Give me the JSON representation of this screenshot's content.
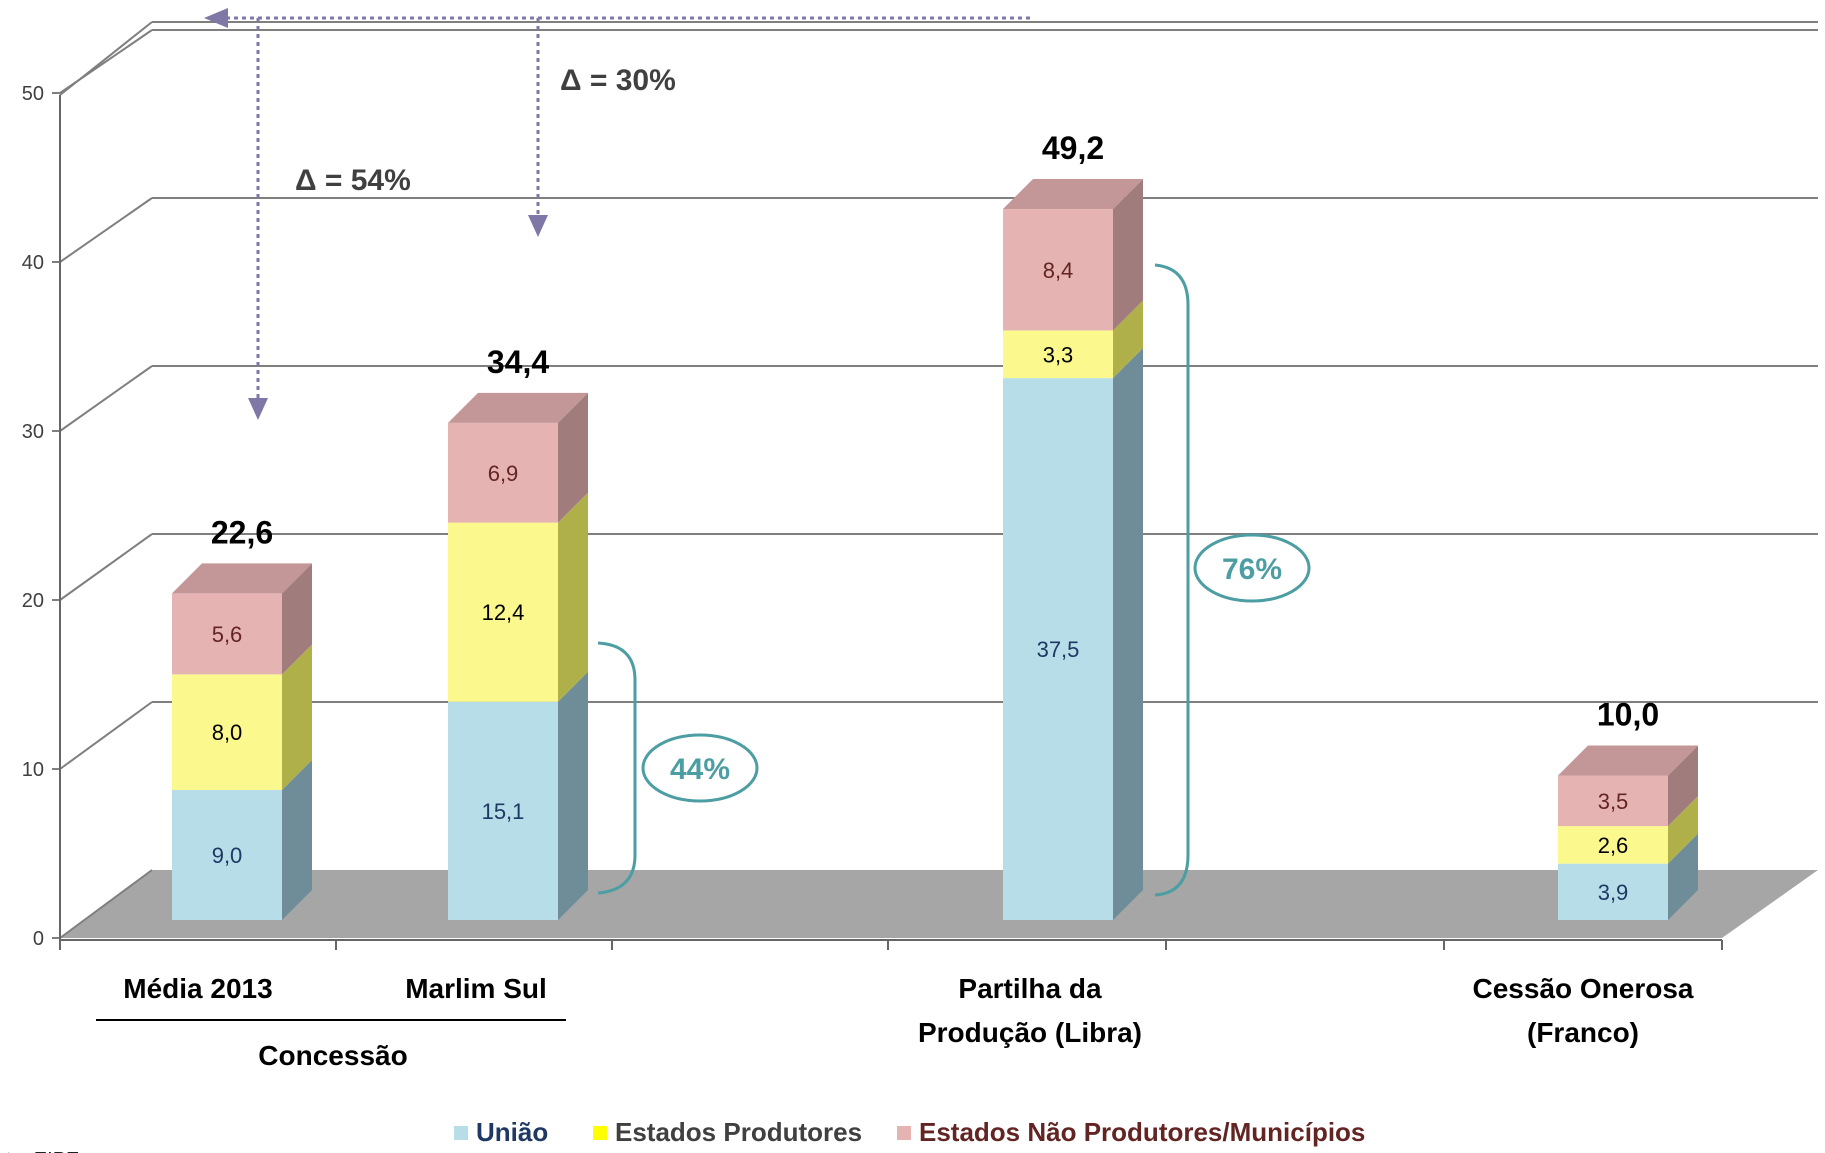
{
  "chart_data": {
    "type": "bar",
    "stacked": true,
    "three_d": true,
    "categories": [
      "Média 2013",
      "Marlim Sul",
      "Partilha da Produção (Libra)",
      "Cessão Onerosa (Franco)"
    ],
    "category_label_lines": [
      [
        "Média 2013"
      ],
      [
        "Marlim Sul"
      ],
      [
        "Partilha da",
        "Produção (Libra)"
      ],
      [
        "Cessão Onerosa",
        "(Franco)"
      ]
    ],
    "group_label": "Concessão",
    "series": [
      {
        "name": "União",
        "values": [
          9.0,
          15.1,
          37.5,
          3.9
        ]
      },
      {
        "name": "Estados Produtores",
        "values": [
          8.0,
          12.4,
          3.3,
          2.6
        ]
      },
      {
        "name": "Estados Não Produtores/Municípios",
        "values": [
          5.6,
          6.9,
          8.4,
          3.5
        ]
      }
    ],
    "segment_labels": [
      [
        "9,0",
        "15,1",
        "37,5",
        "3,9"
      ],
      [
        "8,0",
        "12,4",
        "3,3",
        "2,6"
      ],
      [
        "5,6",
        "6,9",
        "8,4",
        "3,5"
      ]
    ],
    "totals": [
      22.6,
      34.4,
      49.2,
      10.0
    ],
    "total_labels": [
      "22,6",
      "34,4",
      "49,2",
      "10,0"
    ],
    "ylim": [
      0,
      50
    ],
    "yticks": [
      0,
      10,
      20,
      30,
      40,
      50
    ],
    "grid": true,
    "legend_position": "bottom",
    "annotations": {
      "delta_54": "Δ = 54%",
      "delta_30": "Δ = 30%",
      "pct_44": "44%",
      "pct_76": "76%"
    },
    "source_fragment": "te: EIPE",
    "colors": {
      "uniao_front": "#b6dde8",
      "uniao_side": "#6f8d99",
      "uniao_top": "#9cc2cf",
      "produtores_front": "#fbf88e",
      "produtores_side": "#b0b04a",
      "nao_front": "#e6b3b3",
      "nao_side": "#a07c7c",
      "nao_top": "#c39797",
      "grid": "#7f7f7f",
      "floor": "#a6a6a6",
      "teal": "#4d9ea3",
      "arrow": "#7f78a6",
      "uniao_text": "#1f3864",
      "nao_text": "#632523"
    }
  }
}
